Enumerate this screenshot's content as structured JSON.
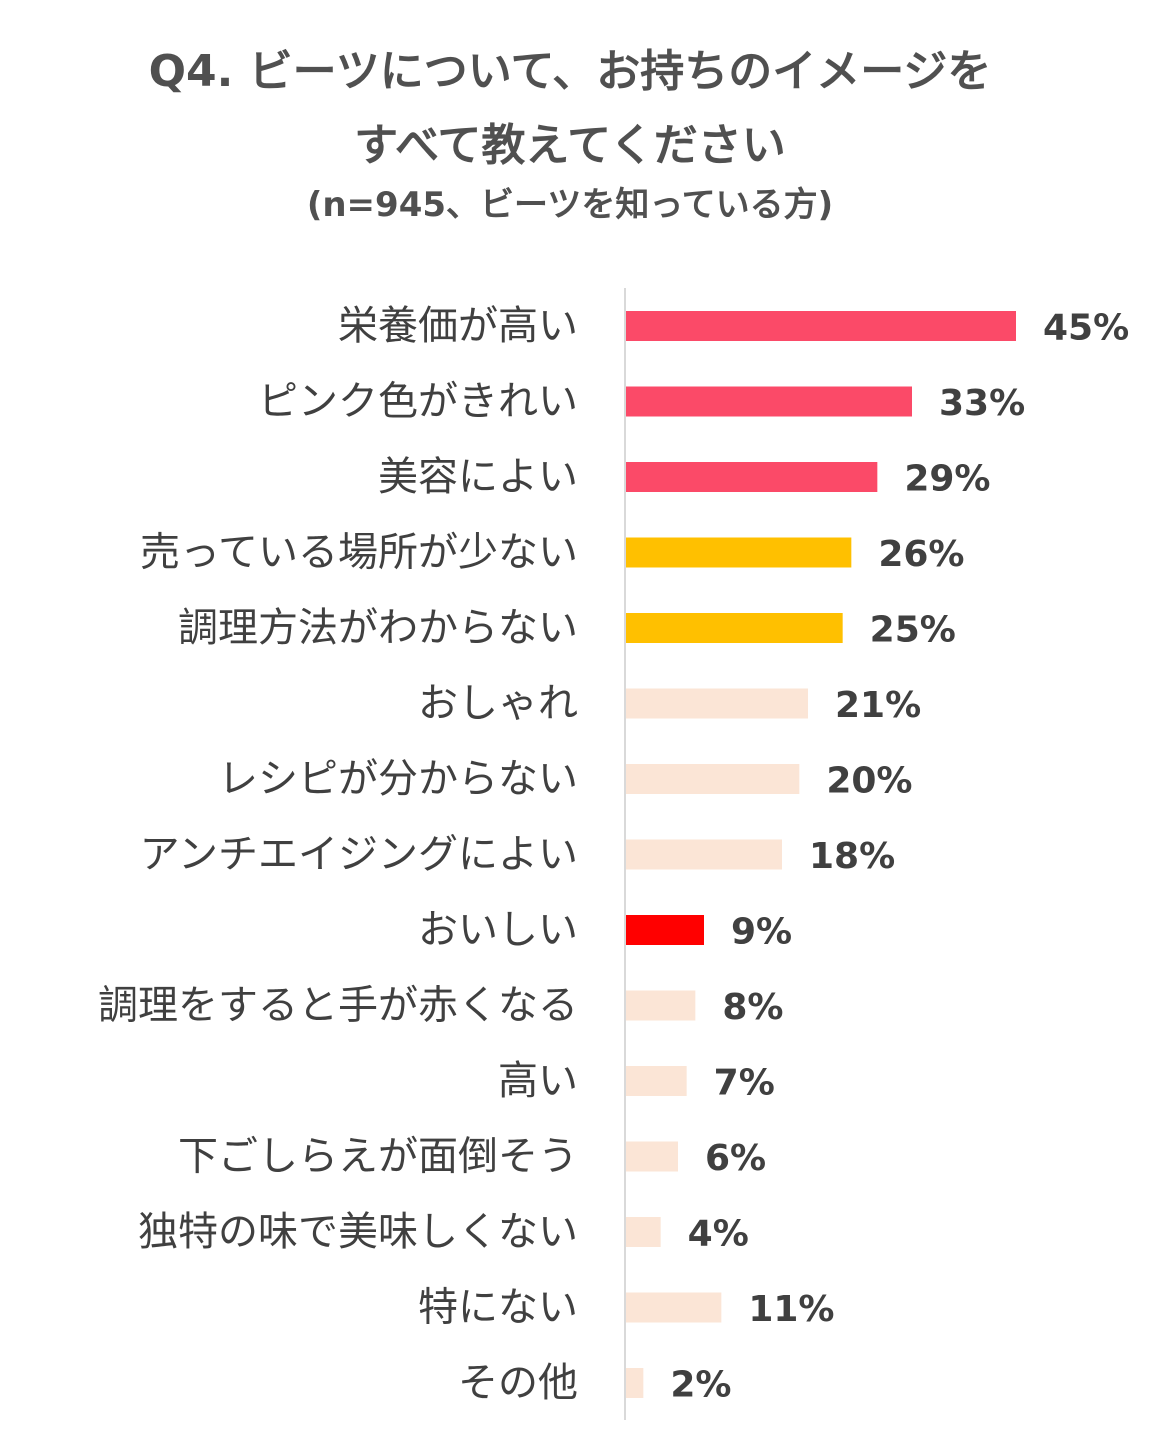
{
  "chart_data": {
    "type": "bar",
    "orientation": "horizontal",
    "title": [
      "Q4. ビーツについて、お持ちのイメージを",
      "すべて教えてください"
    ],
    "subtitle": "(n=945、ビーツを知っている方)",
    "xlabel": "",
    "ylabel": "",
    "xlim": [
      0,
      45
    ],
    "grid": false,
    "legend": "none",
    "value_suffix": "%",
    "categories": [
      "栄養価が高い",
      "ピンク色がきれい",
      "美容によい",
      "売っている場所が少ない",
      "調理方法がわからない",
      "おしゃれ",
      "レシピが分からない",
      "アンチエイジングによい",
      "おいしい",
      "調理をすると手が赤くなる",
      "高い",
      "下ごしらえが面倒そう",
      "独特の味で美味しくない",
      "特にない",
      "その他"
    ],
    "values": [
      45,
      33,
      29,
      26,
      25,
      21,
      20,
      18,
      9,
      8,
      7,
      6,
      4,
      11,
      2
    ],
    "value_labels": [
      "45%",
      "33%",
      "29%",
      "26%",
      "25%",
      "21%",
      "20%",
      "18%",
      "9%",
      "8%",
      "7%",
      "6%",
      "4%",
      "11%",
      "2%"
    ],
    "colors": [
      "#fb4a68",
      "#fb4a68",
      "#fb4a68",
      "#ffc000",
      "#ffc000",
      "#fbe5d6",
      "#fbe5d6",
      "#fbe5d6",
      "#ff0000",
      "#fbe5d6",
      "#fbe5d6",
      "#fbe5d6",
      "#fbe5d6",
      "#fbe5d6",
      "#fbe5d6"
    ],
    "axis_color": "#d9d9d9"
  }
}
